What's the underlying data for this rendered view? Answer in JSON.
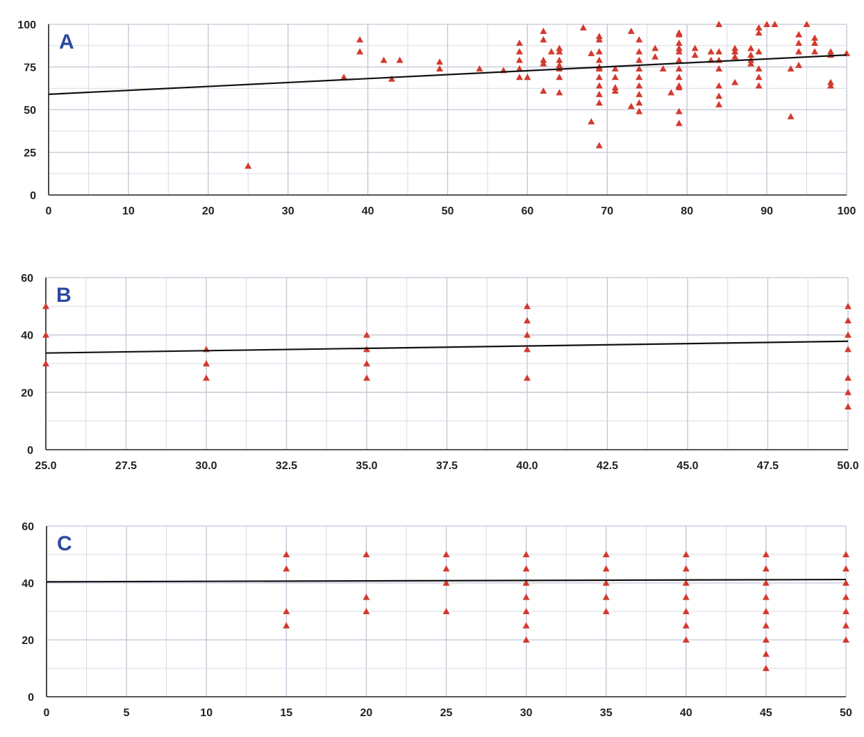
{
  "colors": {
    "marker": "#d23a2e",
    "trend": "#111111",
    "grid": "#d9d9e6",
    "axis": "#222222",
    "letter": "#2a4aa0"
  },
  "chart_data": [
    {
      "type": "scatter",
      "label": "A",
      "xlim": [
        0,
        100
      ],
      "ylim": [
        0,
        100
      ],
      "xticks": [
        0,
        10,
        20,
        30,
        40,
        50,
        60,
        70,
        80,
        90,
        100
      ],
      "xtick_labels": [
        "0",
        "10",
        "20",
        "30",
        "40",
        "50",
        "60",
        "70",
        "80",
        "90",
        "100"
      ],
      "yticks": [
        0,
        25,
        50,
        75,
        100
      ],
      "ytick_labels": [
        "0",
        "25",
        "50",
        "75",
        "100"
      ],
      "minor_x": 5,
      "minor_y": 12.5,
      "trendline": [
        [
          0,
          59
        ],
        [
          100,
          82
        ]
      ],
      "points": [
        [
          25,
          17
        ],
        [
          37,
          69
        ],
        [
          39,
          91
        ],
        [
          39,
          84
        ],
        [
          42,
          79
        ],
        [
          43,
          68
        ],
        [
          44,
          79
        ],
        [
          49,
          78
        ],
        [
          49,
          74
        ],
        [
          54,
          74
        ],
        [
          57,
          73
        ],
        [
          59,
          89
        ],
        [
          59,
          84
        ],
        [
          59,
          79
        ],
        [
          59,
          74
        ],
        [
          59,
          69
        ],
        [
          60,
          69
        ],
        [
          62,
          96
        ],
        [
          62,
          91
        ],
        [
          62,
          79
        ],
        [
          62,
          77
        ],
        [
          62,
          61
        ],
        [
          63,
          84
        ],
        [
          64,
          86
        ],
        [
          64,
          84
        ],
        [
          64,
          79
        ],
        [
          64,
          76
        ],
        [
          64,
          74
        ],
        [
          64,
          69
        ],
        [
          64,
          60
        ],
        [
          67,
          98
        ],
        [
          68,
          83
        ],
        [
          68,
          43
        ],
        [
          69,
          93
        ],
        [
          69,
          91
        ],
        [
          69,
          84
        ],
        [
          69,
          79
        ],
        [
          69,
          75
        ],
        [
          69,
          74
        ],
        [
          69,
          69
        ],
        [
          69,
          64
        ],
        [
          69,
          59
        ],
        [
          69,
          54
        ],
        [
          69,
          29
        ],
        [
          71,
          74
        ],
        [
          71,
          69
        ],
        [
          71,
          63
        ],
        [
          71,
          61
        ],
        [
          73,
          96
        ],
        [
          73,
          52
        ],
        [
          74,
          91
        ],
        [
          74,
          84
        ],
        [
          74,
          79
        ],
        [
          74,
          74
        ],
        [
          74,
          69
        ],
        [
          74,
          64
        ],
        [
          74,
          59
        ],
        [
          74,
          54
        ],
        [
          74,
          49
        ],
        [
          76,
          86
        ],
        [
          76,
          81
        ],
        [
          77,
          74
        ],
        [
          78,
          60
        ],
        [
          79,
          95
        ],
        [
          79,
          94
        ],
        [
          79,
          89
        ],
        [
          79,
          86
        ],
        [
          79,
          84
        ],
        [
          79,
          79
        ],
        [
          79,
          74
        ],
        [
          79,
          69
        ],
        [
          79,
          64
        ],
        [
          79,
          63
        ],
        [
          79,
          49
        ],
        [
          79,
          42
        ],
        [
          81,
          86
        ],
        [
          81,
          82
        ],
        [
          83,
          84
        ],
        [
          83,
          79
        ],
        [
          84,
          100
        ],
        [
          84,
          84
        ],
        [
          84,
          79
        ],
        [
          84,
          74
        ],
        [
          84,
          64
        ],
        [
          84,
          58
        ],
        [
          84,
          53
        ],
        [
          86,
          86
        ],
        [
          86,
          84
        ],
        [
          86,
          81
        ],
        [
          86,
          66
        ],
        [
          88,
          86
        ],
        [
          88,
          82
        ],
        [
          88,
          79
        ],
        [
          88,
          77
        ],
        [
          89,
          98
        ],
        [
          89,
          95
        ],
        [
          89,
          84
        ],
        [
          89,
          74
        ],
        [
          89,
          69
        ],
        [
          89,
          64
        ],
        [
          90,
          100
        ],
        [
          91,
          100
        ],
        [
          93,
          74
        ],
        [
          93,
          46
        ],
        [
          94,
          94
        ],
        [
          94,
          89
        ],
        [
          94,
          84
        ],
        [
          94,
          76
        ],
        [
          95,
          100
        ],
        [
          96,
          92
        ],
        [
          96,
          89
        ],
        [
          96,
          84
        ],
        [
          98,
          84
        ],
        [
          98,
          82
        ],
        [
          98,
          66
        ],
        [
          98,
          64
        ],
        [
          100,
          83
        ]
      ]
    },
    {
      "type": "scatter",
      "label": "B",
      "xlim": [
        25,
        50
      ],
      "ylim": [
        0,
        60
      ],
      "xticks": [
        25,
        27.5,
        30,
        32.5,
        35,
        37.5,
        40,
        42.5,
        45,
        47.5,
        50
      ],
      "xtick_labels": [
        "25.0",
        "27.5",
        "30.0",
        "32.5",
        "35.0",
        "37.5",
        "40.0",
        "42.5",
        "45.0",
        "47.5",
        "50.0"
      ],
      "yticks": [
        0,
        20,
        40,
        60
      ],
      "ytick_labels": [
        "0",
        "20",
        "40",
        "60"
      ],
      "minor_x": 1.25,
      "minor_y": 10,
      "trendline": [
        [
          25,
          33.7
        ],
        [
          50,
          37.8
        ]
      ],
      "points": [
        [
          25,
          50
        ],
        [
          25,
          40
        ],
        [
          25,
          30
        ],
        [
          30,
          35
        ],
        [
          30,
          30
        ],
        [
          30,
          25
        ],
        [
          35,
          40
        ],
        [
          35,
          35
        ],
        [
          35,
          30
        ],
        [
          35,
          25
        ],
        [
          40,
          50
        ],
        [
          40,
          45
        ],
        [
          40,
          40
        ],
        [
          40,
          35
        ],
        [
          40,
          25
        ],
        [
          50,
          50
        ],
        [
          50,
          45
        ],
        [
          50,
          40
        ],
        [
          50,
          35
        ],
        [
          50,
          25
        ],
        [
          50,
          20
        ],
        [
          50,
          15
        ]
      ]
    },
    {
      "type": "scatter",
      "label": "C",
      "xlim": [
        0,
        50
      ],
      "ylim": [
        0,
        60
      ],
      "xticks": [
        0,
        5,
        10,
        15,
        20,
        25,
        30,
        35,
        40,
        45,
        50
      ],
      "xtick_labels": [
        "0",
        "5",
        "10",
        "15",
        "20",
        "25",
        "30",
        "35",
        "40",
        "45",
        "50"
      ],
      "yticks": [
        0,
        20,
        40,
        60
      ],
      "ytick_labels": [
        "0",
        "20",
        "40",
        "60"
      ],
      "minor_x": 2.5,
      "minor_y": 10,
      "trendline": [
        [
          0,
          40.4
        ],
        [
          50,
          41.2
        ]
      ],
      "points": [
        [
          15,
          50
        ],
        [
          15,
          45
        ],
        [
          15,
          30
        ],
        [
          15,
          25
        ],
        [
          20,
          50
        ],
        [
          20,
          35
        ],
        [
          20,
          30
        ],
        [
          25,
          50
        ],
        [
          25,
          45
        ],
        [
          25,
          40
        ],
        [
          25,
          30
        ],
        [
          30,
          50
        ],
        [
          30,
          45
        ],
        [
          30,
          40
        ],
        [
          30,
          35
        ],
        [
          30,
          30
        ],
        [
          30,
          25
        ],
        [
          30,
          20
        ],
        [
          35,
          50
        ],
        [
          35,
          45
        ],
        [
          35,
          40
        ],
        [
          35,
          35
        ],
        [
          35,
          30
        ],
        [
          40,
          50
        ],
        [
          40,
          45
        ],
        [
          40,
          40
        ],
        [
          40,
          35
        ],
        [
          40,
          30
        ],
        [
          40,
          25
        ],
        [
          40,
          20
        ],
        [
          45,
          50
        ],
        [
          45,
          45
        ],
        [
          45,
          40
        ],
        [
          45,
          35
        ],
        [
          45,
          30
        ],
        [
          45,
          25
        ],
        [
          45,
          20
        ],
        [
          45,
          15
        ],
        [
          45,
          10
        ],
        [
          50,
          50
        ],
        [
          50,
          45
        ],
        [
          50,
          40
        ],
        [
          50,
          35
        ],
        [
          50,
          30
        ],
        [
          50,
          25
        ],
        [
          50,
          20
        ]
      ]
    }
  ]
}
